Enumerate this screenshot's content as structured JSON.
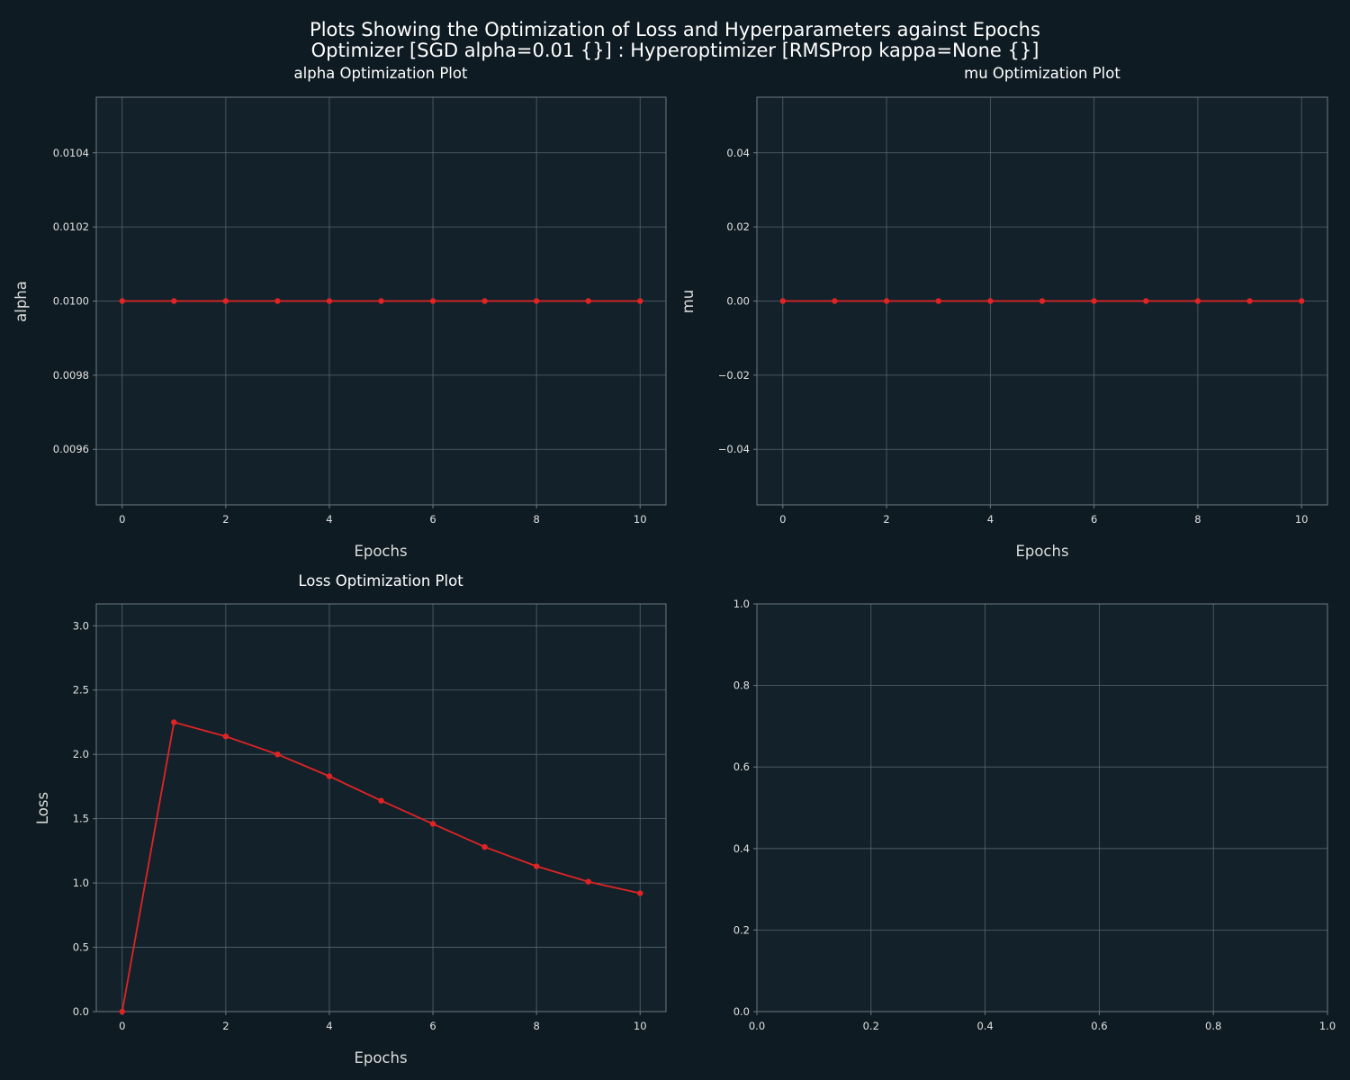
{
  "figure": {
    "title_line1": "Plots Showing the Optimization of Loss and Hyperparameters against Epochs",
    "title_line2": "Optimizer [SGD alpha=0.01 {}] : Hyperoptimizer [RMSProp kappa=None {}]"
  },
  "colors": {
    "line": "#e02424",
    "background": "#0e1b22",
    "plot_background": "#13212a"
  },
  "chart_data": [
    {
      "type": "line",
      "title": "alpha Optimization Plot",
      "xlabel": "Epochs",
      "ylabel": "alpha",
      "xlim": [
        -0.5,
        10.5
      ],
      "ylim": [
        0.00945,
        0.01055
      ],
      "xticks": [
        0,
        2,
        4,
        6,
        8,
        10
      ],
      "xtick_labels": [
        "0",
        "2",
        "4",
        "6",
        "8",
        "10"
      ],
      "yticks": [
        0.0096,
        0.0098,
        0.01,
        0.0102,
        0.0104
      ],
      "ytick_labels": [
        "0.0096",
        "0.0098",
        "0.0100",
        "0.0102",
        "0.0104"
      ],
      "grid": true,
      "series": [
        {
          "x": [
            0,
            1,
            2,
            3,
            4,
            5,
            6,
            7,
            8,
            9,
            10
          ],
          "y": [
            0.01,
            0.01,
            0.01,
            0.01,
            0.01,
            0.01,
            0.01,
            0.01,
            0.01,
            0.01,
            0.01
          ]
        }
      ]
    },
    {
      "type": "line",
      "title": "mu Optimization Plot",
      "xlabel": "Epochs",
      "ylabel": "mu",
      "xlim": [
        -0.5,
        10.5
      ],
      "ylim": [
        -0.055,
        0.055
      ],
      "xticks": [
        0,
        2,
        4,
        6,
        8,
        10
      ],
      "xtick_labels": [
        "0",
        "2",
        "4",
        "6",
        "8",
        "10"
      ],
      "yticks": [
        -0.04,
        -0.02,
        0,
        0.02,
        0.04
      ],
      "ytick_labels": [
        "−0.04",
        "−0.02",
        "0.00",
        "0.02",
        "0.04"
      ],
      "grid": true,
      "series": [
        {
          "x": [
            0,
            1,
            2,
            3,
            4,
            5,
            6,
            7,
            8,
            9,
            10
          ],
          "y": [
            0,
            0,
            0,
            0,
            0,
            0,
            0,
            0,
            0,
            0,
            0
          ]
        }
      ]
    },
    {
      "type": "line",
      "title": "Loss Optimization Plot",
      "xlabel": "Epochs",
      "ylabel": "Loss",
      "xlim": [
        -0.5,
        10.5
      ],
      "ylim": [
        0,
        3.17
      ],
      "xticks": [
        0,
        2,
        4,
        6,
        8,
        10
      ],
      "xtick_labels": [
        "0",
        "2",
        "4",
        "6",
        "8",
        "10"
      ],
      "yticks": [
        0,
        0.5,
        1,
        1.5,
        2,
        2.5,
        3
      ],
      "ytick_labels": [
        "0.0",
        "0.5",
        "1.0",
        "1.5",
        "2.0",
        "2.5",
        "3.0"
      ],
      "grid": true,
      "series": [
        {
          "x": [
            0,
            1,
            2,
            3,
            4,
            5,
            6,
            7,
            8,
            9,
            10
          ],
          "y": [
            0.0,
            2.25,
            2.14,
            2.0,
            1.83,
            1.64,
            1.46,
            1.28,
            1.13,
            1.01,
            0.92
          ]
        }
      ]
    },
    {
      "type": "line",
      "title": "",
      "xlabel": "",
      "ylabel": "",
      "xlim": [
        0,
        1
      ],
      "ylim": [
        0,
        1
      ],
      "xticks": [
        0,
        0.2,
        0.4,
        0.6,
        0.8,
        1
      ],
      "xtick_labels": [
        "0.0",
        "0.2",
        "0.4",
        "0.6",
        "0.8",
        "1.0"
      ],
      "yticks": [
        0,
        0.2,
        0.4,
        0.6,
        0.8,
        1
      ],
      "ytick_labels": [
        "0.0",
        "0.2",
        "0.4",
        "0.6",
        "0.8",
        "1.0"
      ],
      "grid": true,
      "series": []
    }
  ]
}
